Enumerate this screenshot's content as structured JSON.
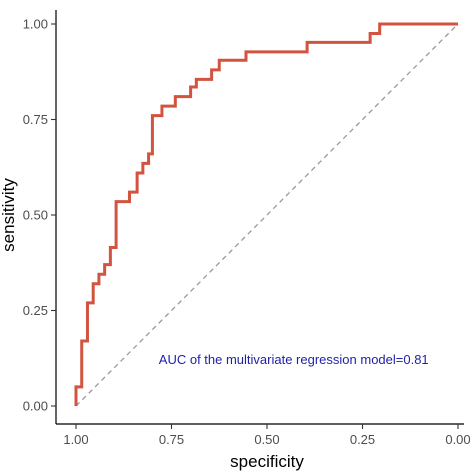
{
  "chart_data": {
    "type": "line",
    "title": "",
    "xlabel": "specificity",
    "ylabel": "sensitivity",
    "x_reversed": true,
    "xlim": [
      1.0,
      0.0
    ],
    "ylim": [
      0.0,
      1.0
    ],
    "x_ticks": [
      1.0,
      0.75,
      0.5,
      0.25,
      0.0
    ],
    "x_tick_labels": [
      "1.00",
      "0.75",
      "0.50",
      "0.25",
      "0.00"
    ],
    "y_ticks": [
      0.0,
      0.25,
      0.5,
      0.75,
      1.0
    ],
    "y_tick_labels": [
      "0.00",
      "0.25",
      "0.50",
      "0.75",
      "1.00"
    ],
    "grid": false,
    "annotation": {
      "text": "AUC of  the multivariate regression model=0.81",
      "x": 0.43,
      "y": 0.11,
      "color": "#1f1fa8"
    },
    "series": [
      {
        "color": "#d2533f",
        "specificity": [
          1.0,
          1.0,
          0.985,
          0.985,
          0.97,
          0.97,
          0.955,
          0.955,
          0.94,
          0.94,
          0.925,
          0.925,
          0.91,
          0.91,
          0.895,
          0.895,
          0.88,
          0.88,
          0.86,
          0.86,
          0.84,
          0.84,
          0.825,
          0.825,
          0.81,
          0.81,
          0.8,
          0.8,
          0.775,
          0.775,
          0.76,
          0.76,
          0.74,
          0.74,
          0.72,
          0.72,
          0.7,
          0.7,
          0.685,
          0.685,
          0.67,
          0.67,
          0.645,
          0.645,
          0.625,
          0.625,
          0.6,
          0.6,
          0.555,
          0.555,
          0.395,
          0.395,
          0.23,
          0.23,
          0.205,
          0.205,
          0.0
        ],
        "sensitivity": [
          0.0,
          0.05,
          0.05,
          0.17,
          0.17,
          0.27,
          0.27,
          0.32,
          0.32,
          0.345,
          0.345,
          0.37,
          0.37,
          0.415,
          0.415,
          0.535,
          0.535,
          0.535,
          0.535,
          0.56,
          0.56,
          0.61,
          0.61,
          0.635,
          0.635,
          0.66,
          0.66,
          0.76,
          0.76,
          0.785,
          0.785,
          0.785,
          0.785,
          0.81,
          0.81,
          0.81,
          0.81,
          0.835,
          0.835,
          0.855,
          0.855,
          0.855,
          0.855,
          0.88,
          0.88,
          0.905,
          0.905,
          0.905,
          0.905,
          0.927,
          0.927,
          0.952,
          0.952,
          0.975,
          0.975,
          1.0,
          1.0
        ]
      },
      {
        "color": "#999999",
        "dashed": true,
        "specificity": [
          1.0,
          0.0
        ],
        "sensitivity": [
          0.0,
          1.0
        ]
      }
    ]
  }
}
